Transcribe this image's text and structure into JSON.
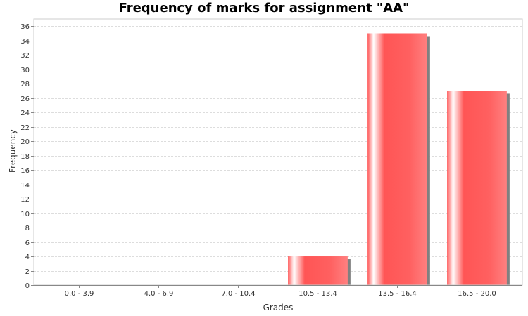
{
  "chart_data": {
    "type": "bar",
    "title": "Frequency of marks for assignment \"AA\"",
    "xlabel": "Grades",
    "ylabel": "Frequency",
    "categories": [
      "0.0 - 3.9",
      "4.0 - 6.9",
      "7.0 - 10.4",
      "10.5 - 13.4",
      "13.5 - 16.4",
      "16.5 - 20.0"
    ],
    "values": [
      0,
      0,
      0,
      4,
      35,
      27
    ],
    "ylim": [
      0,
      37
    ],
    "yticks": [
      0,
      2,
      4,
      6,
      8,
      10,
      12,
      14,
      16,
      18,
      20,
      22,
      24,
      26,
      28,
      30,
      32,
      34,
      36
    ],
    "grid": true,
    "colors": {
      "bar": "#ff5555",
      "bar_highlight": "#ffffff",
      "shadow": "#808080",
      "grid": "#dddddd"
    }
  }
}
